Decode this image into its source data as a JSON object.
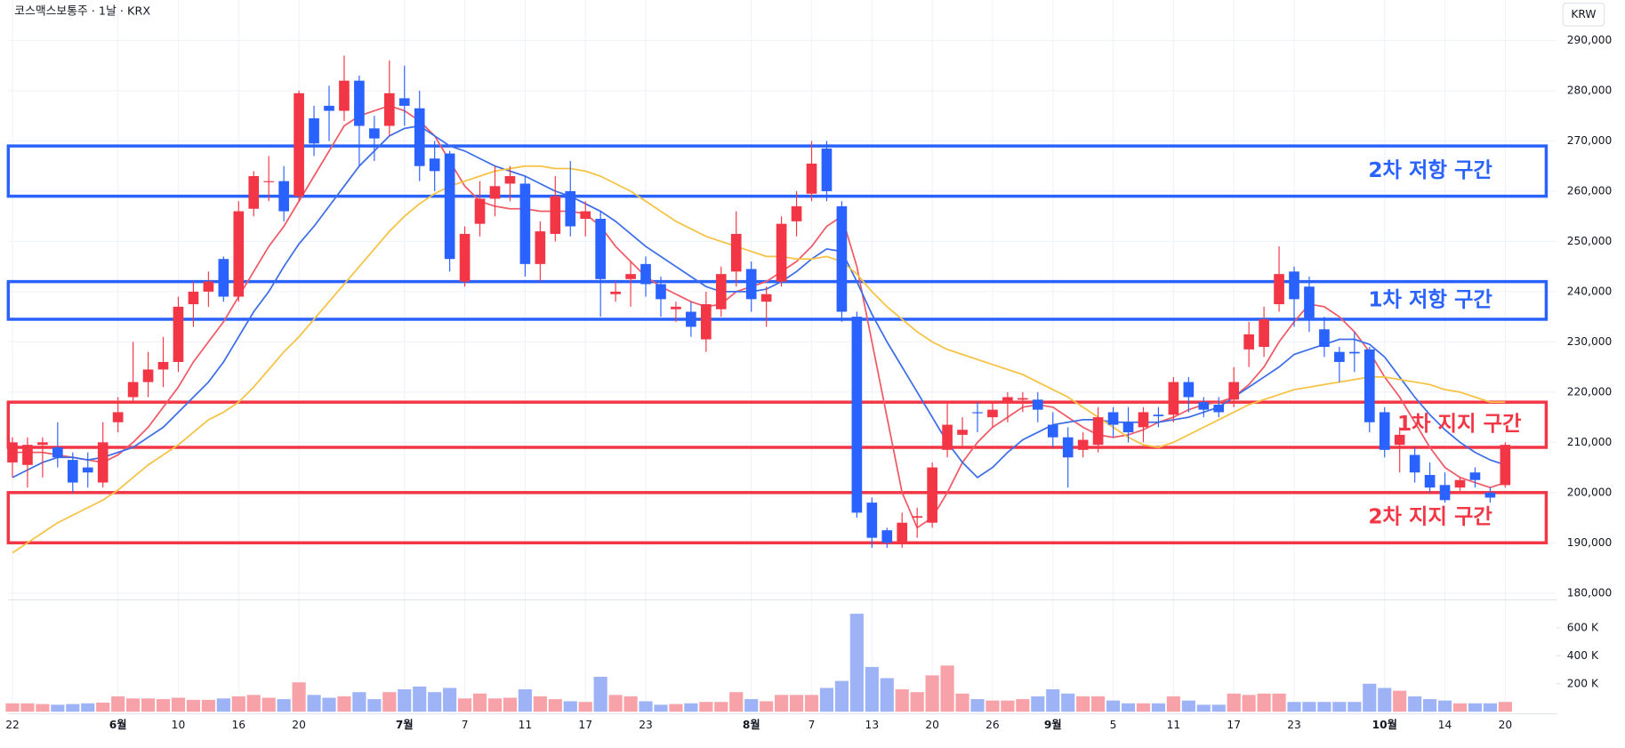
{
  "chart_data": {
    "type": "candlestick",
    "title": "코스맥스보통주 · 1날 · KRX",
    "currency": "KRW",
    "categories": [
      "22",
      null,
      null,
      null,
      null,
      null,
      null,
      "6월",
      null,
      null,
      null,
      "10",
      null,
      null,
      null,
      "16",
      null,
      null,
      null,
      "20",
      null,
      null,
      null,
      null,
      null,
      null,
      "7월",
      null,
      null,
      null,
      "7",
      null,
      null,
      null,
      "11",
      null,
      null,
      null,
      "17",
      null,
      null,
      null,
      "23",
      null,
      null,
      null,
      null,
      null,
      null,
      "8월",
      null,
      null,
      null,
      "7",
      null,
      null,
      null,
      "13",
      null,
      null,
      null,
      "20",
      null,
      null,
      null,
      "26",
      null,
      null,
      null,
      "9월",
      null,
      null,
      null,
      "5",
      null,
      null,
      null,
      "11",
      null,
      null,
      null,
      "17",
      null,
      null,
      null,
      "23",
      null,
      null,
      null,
      null,
      null,
      "10월",
      null,
      null,
      null,
      "14",
      null,
      null,
      null,
      "20"
    ],
    "open": [
      206000,
      205500,
      209500,
      209000,
      206500,
      205000,
      202000,
      214000,
      219000,
      222000,
      224500,
      226000,
      237500,
      240000,
      246500,
      239000,
      256500,
      261800,
      262000,
      259000,
      274500,
      277000,
      276000,
      282000,
      272500,
      273000,
      278500,
      276500,
      266500,
      267500,
      242000,
      253500,
      258500,
      261500,
      261500,
      245500,
      251500,
      260000,
      254500,
      254500,
      239500,
      242500,
      245500,
      241500,
      236500,
      236000,
      230500,
      236500,
      244000,
      244500,
      238000,
      242000,
      254000,
      259500,
      268500,
      257000,
      235000,
      198000,
      192500,
      190000,
      195000,
      194000,
      208500,
      211500,
      216000,
      215000,
      218000,
      218500,
      218500,
      213500,
      211000,
      208500,
      209500,
      216000,
      214000,
      213000,
      215500,
      215500,
      222000,
      218000,
      217500,
      218500,
      228500,
      229000,
      237500,
      244000,
      241000,
      232500,
      228000,
      228000,
      228500,
      216000,
      209500,
      207500,
      203500,
      201500,
      201000,
      204000,
      200000,
      201500
    ],
    "high": [
      211000,
      211000,
      211000,
      214000,
      208000,
      208000,
      214000,
      219000,
      230000,
      228000,
      231000,
      239000,
      242000,
      244000,
      247000,
      258000,
      264000,
      267000,
      265000,
      280000,
      277000,
      281000,
      287000,
      283000,
      275000,
      286000,
      285000,
      280000,
      270000,
      268000,
      253000,
      262000,
      265000,
      265000,
      263000,
      254000,
      263000,
      266000,
      258000,
      256000,
      242000,
      246000,
      247000,
      243000,
      238000,
      238000,
      240000,
      245000,
      256000,
      246000,
      241000,
      255000,
      260000,
      270000,
      270000,
      258000,
      236000,
      199000,
      193000,
      196000,
      197000,
      206000,
      218000,
      215000,
      218000,
      218000,
      220000,
      220000,
      220000,
      216000,
      213000,
      212000,
      217000,
      217000,
      217000,
      217000,
      217000,
      223000,
      223000,
      219000,
      219000,
      225000,
      234000,
      237000,
      249000,
      245000,
      243000,
      235000,
      229000,
      232000,
      229000,
      217000,
      213000,
      209000,
      206000,
      204000,
      203000,
      205000,
      201000,
      210000
    ],
    "low": [
      203000,
      201000,
      203000,
      205000,
      200000,
      201000,
      201000,
      212000,
      218000,
      219000,
      221000,
      224000,
      233000,
      237000,
      238000,
      238000,
      255000,
      258000,
      254000,
      258000,
      267000,
      270000,
      274000,
      265000,
      266000,
      271000,
      273000,
      262000,
      260000,
      244000,
      241000,
      251000,
      255000,
      258000,
      243000,
      242000,
      250000,
      251000,
      251000,
      235000,
      238000,
      237000,
      239000,
      235000,
      234000,
      231000,
      228000,
      235000,
      241000,
      236000,
      233000,
      241000,
      251000,
      258000,
      258000,
      234000,
      195000,
      189000,
      189000,
      189000,
      191000,
      193000,
      207000,
      209000,
      212000,
      213000,
      214000,
      216000,
      214000,
      209000,
      201000,
      207000,
      208000,
      211000,
      210000,
      210000,
      213000,
      214000,
      216000,
      215000,
      215000,
      217000,
      225000,
      227000,
      236000,
      233000,
      232000,
      227000,
      222000,
      224000,
      212000,
      207000,
      204000,
      202000,
      200000,
      198000,
      200000,
      201000,
      198000,
      201000
    ],
    "close": [
      210000,
      209500,
      210000,
      207000,
      202000,
      204000,
      210000,
      216000,
      222000,
      224500,
      226000,
      237000,
      240000,
      242000,
      239000,
      256000,
      263000,
      262000,
      256000,
      279500,
      269500,
      276000,
      282000,
      273000,
      270500,
      279500,
      277000,
      265000,
      264000,
      246500,
      251500,
      258500,
      261000,
      263000,
      245500,
      252000,
      259000,
      253000,
      256000,
      242500,
      240000,
      243500,
      241500,
      238500,
      237000,
      233000,
      237500,
      243500,
      251500,
      238500,
      239500,
      253500,
      257000,
      265500,
      260000,
      236000,
      196000,
      191000,
      190000,
      194000,
      195300,
      205000,
      213500,
      212500,
      215800,
      216500,
      219000,
      218800,
      216500,
      211000,
      207000,
      210500,
      215000,
      213500,
      212000,
      216000,
      215200,
      222000,
      219000,
      216500,
      216000,
      222000,
      231500,
      234500,
      243500,
      238500,
      234500,
      229000,
      226000,
      227700,
      214000,
      208500,
      211500,
      204000,
      201000,
      198500,
      202500,
      202500,
      199000,
      209500
    ],
    "up_color": "#f23645",
    "down_color": "#2962ff",
    "moving_averages": [
      {
        "color": "#f05a66",
        "values": [
          208000,
          208000,
          208000,
          207500,
          207000,
          206500,
          206000,
          207500,
          210000,
          213000,
          217000,
          221000,
          226000,
          230000,
          234000,
          239000,
          244000,
          249000,
          253000,
          258000,
          263000,
          268000,
          273000,
          275000,
          276000,
          277000,
          276000,
          274000,
          271000,
          266000,
          261000,
          258000,
          257000,
          256500,
          256500,
          256000,
          256000,
          256000,
          255500,
          253000,
          249000,
          246000,
          243000,
          241000,
          239500,
          238000,
          237000,
          237500,
          240000,
          241000,
          242000,
          244000,
          246000,
          249000,
          253000,
          255000,
          245000,
          230000,
          215000,
          200000,
          193000,
          195000,
          200000,
          206000,
          210000,
          213000,
          215000,
          217000,
          217500,
          217000,
          215000,
          213000,
          211500,
          211000,
          211500,
          212500,
          214000,
          215000,
          216500,
          217500,
          218000,
          219000,
          221500,
          225000,
          230000,
          234000,
          237500,
          237000,
          235000,
          232000,
          228000,
          223000,
          219000,
          214000,
          209000,
          205000,
          203000,
          202000,
          201000,
          202000
        ]
      },
      {
        "color": "#3d6ee8",
        "values": [
          203000,
          204500,
          206000,
          207000,
          207000,
          206500,
          207000,
          208000,
          209000,
          211000,
          213000,
          216000,
          219000,
          222000,
          226000,
          231000,
          236000,
          240000,
          245000,
          249500,
          253000,
          257000,
          261000,
          265000,
          268000,
          271000,
          272500,
          273000,
          271000,
          269000,
          268000,
          266500,
          265000,
          264000,
          263000,
          261500,
          260000,
          259000,
          257500,
          256000,
          254000,
          251500,
          249000,
          247000,
          245000,
          243000,
          241000,
          240000,
          240000,
          240000,
          240500,
          242000,
          244000,
          246500,
          248500,
          248000,
          242000,
          235500,
          230000,
          225000,
          220000,
          215000,
          210000,
          206000,
          203000,
          205000,
          208000,
          210500,
          212000,
          213500,
          214000,
          214500,
          214500,
          214000,
          214000,
          214000,
          214000,
          214500,
          215000,
          216000,
          217000,
          219000,
          221000,
          223000,
          225000,
          227500,
          228500,
          229500,
          230500,
          230500,
          229500,
          227000,
          223000,
          219000,
          215500,
          212500,
          210000,
          208000,
          206500,
          205500
        ]
      },
      {
        "color": "#f5c242",
        "values": [
          188000,
          190000,
          192000,
          194000,
          195500,
          197000,
          198500,
          200500,
          203000,
          205500,
          207500,
          209500,
          212000,
          214500,
          216000,
          218000,
          221000,
          224500,
          228000,
          231000,
          234500,
          238000,
          241500,
          245000,
          248500,
          252000,
          255000,
          257500,
          259500,
          261000,
          262000,
          263000,
          264000,
          264500,
          265000,
          265000,
          264500,
          264500,
          264000,
          263000,
          261500,
          260000,
          258000,
          256000,
          254000,
          252500,
          251000,
          250000,
          249000,
          248000,
          247000,
          247000,
          246500,
          246500,
          247000,
          246000,
          243500,
          240000,
          237000,
          234500,
          232000,
          230000,
          228500,
          227500,
          226500,
          225500,
          224500,
          223500,
          222000,
          220500,
          219000,
          217000,
          215000,
          213000,
          211000,
          209500,
          209000,
          210000,
          211500,
          213000,
          214500,
          216000,
          217500,
          218500,
          219500,
          220500,
          221000,
          221500,
          222000,
          222500,
          223000,
          223000,
          222500,
          222000,
          221500,
          220500,
          220000,
          219000,
          218000,
          218000
        ]
      }
    ],
    "ylim": [
      178850,
      298060
    ],
    "yticks": [
      {
        "value": 180000,
        "label": "180,000"
      },
      {
        "value": 190000,
        "label": "190,000"
      },
      {
        "value": 200000,
        "label": "200,000"
      },
      {
        "value": 210000,
        "label": "210,000"
      },
      {
        "value": 220000,
        "label": "220,000"
      },
      {
        "value": 230000,
        "label": "230,000"
      },
      {
        "value": 240000,
        "label": "240,000"
      },
      {
        "value": 250000,
        "label": "250,000"
      },
      {
        "value": 260000,
        "label": "260,000"
      },
      {
        "value": 270000,
        "label": "270,000"
      },
      {
        "value": 280000,
        "label": "280,000"
      },
      {
        "value": 290000,
        "label": "290,000"
      }
    ],
    "grid": true,
    "zones": [
      {
        "label": "2차 저항 구간",
        "low": 259000,
        "high": 269000,
        "color": "#2962ff"
      },
      {
        "label": "1차 저항 구간",
        "low": 234500,
        "high": 242000,
        "color": "#2962ff"
      },
      {
        "label": "1차 지지 구간",
        "low": 209000,
        "high": 218000,
        "color": "#f23645"
      },
      {
        "label": "2차 지지 구간",
        "low": 190000,
        "high": 200000,
        "color": "#f23645"
      }
    ],
    "volume": {
      "values": [
        60000,
        60000,
        55000,
        50000,
        55000,
        60000,
        65000,
        110000,
        95000,
        95000,
        90000,
        100000,
        85000,
        85000,
        95000,
        110000,
        120000,
        100000,
        90000,
        210000,
        120000,
        100000,
        110000,
        140000,
        90000,
        140000,
        160000,
        180000,
        140000,
        170000,
        95000,
        130000,
        95000,
        100000,
        160000,
        110000,
        90000,
        75000,
        70000,
        250000,
        120000,
        110000,
        75000,
        50000,
        55000,
        60000,
        70000,
        70000,
        140000,
        90000,
        75000,
        120000,
        120000,
        120000,
        170000,
        220000,
        700000,
        320000,
        240000,
        160000,
        140000,
        260000,
        330000,
        130000,
        90000,
        80000,
        80000,
        90000,
        110000,
        160000,
        130000,
        110000,
        110000,
        80000,
        60000,
        60000,
        60000,
        110000,
        80000,
        50000,
        50000,
        130000,
        120000,
        130000,
        130000,
        70000,
        70000,
        70000,
        70000,
        70000,
        200000,
        170000,
        150000,
        110000,
        90000,
        80000,
        60000,
        60000,
        60000,
        70000
      ],
      "up_color": "#f7a1a8",
      "down_color": "#9db3f5",
      "ylim": [
        0,
        755000
      ],
      "yticks": [
        {
          "value": 200000,
          "label": "200 K"
        },
        {
          "value": 400000,
          "label": "400 K"
        },
        {
          "value": 600000,
          "label": "600 K"
        }
      ]
    }
  }
}
